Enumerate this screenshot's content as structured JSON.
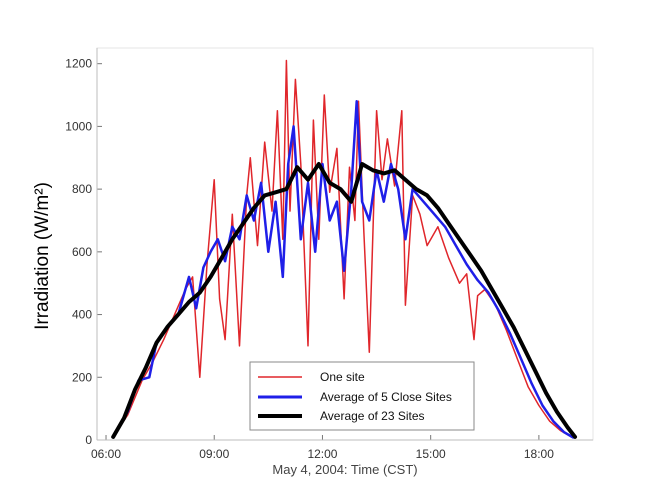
{
  "chart_data": {
    "type": "line",
    "xlabel": "May 4, 2004: Time (CST)",
    "ylabel": "Irradiation (W/m²)",
    "xlim": [
      5.75,
      19.5
    ],
    "ylim": [
      0,
      1250
    ],
    "x_ticks": [
      6,
      9,
      12,
      15,
      18
    ],
    "x_tick_labels": [
      "06:00",
      "09:00",
      "12:00",
      "15:00",
      "18:00"
    ],
    "y_ticks": [
      0,
      200,
      400,
      600,
      800,
      1000,
      1200
    ],
    "y_tick_labels": [
      "0",
      "200",
      "400",
      "600",
      "800",
      "1000",
      "1200"
    ],
    "legend_position": "bottom-center",
    "series": [
      {
        "name": "One site",
        "color": "#e0262b",
        "x": [
          6.2,
          6.6,
          7.0,
          7.3,
          7.6,
          7.9,
          8.2,
          8.4,
          8.6,
          8.8,
          9.0,
          9.15,
          9.3,
          9.5,
          9.7,
          9.9,
          10.0,
          10.2,
          10.4,
          10.6,
          10.75,
          10.9,
          11.0,
          11.1,
          11.25,
          11.4,
          11.6,
          11.75,
          11.9,
          12.05,
          12.2,
          12.4,
          12.6,
          12.75,
          12.9,
          13.0,
          13.15,
          13.3,
          13.5,
          13.65,
          13.8,
          14.0,
          14.2,
          14.3,
          14.5,
          14.7,
          14.9,
          15.2,
          15.5,
          15.8,
          16.0,
          16.2,
          16.3,
          16.5,
          16.8,
          17.1,
          17.4,
          17.7,
          18.0,
          18.3,
          18.6,
          18.9
        ],
        "y": [
          10,
          80,
          190,
          250,
          320,
          400,
          480,
          520,
          200,
          560,
          830,
          450,
          320,
          720,
          300,
          780,
          900,
          620,
          950,
          730,
          1050,
          640,
          1210,
          730,
          1150,
          880,
          300,
          1020,
          640,
          1100,
          790,
          930,
          450,
          870,
          700,
          1080,
          660,
          280,
          1050,
          830,
          960,
          810,
          1050,
          430,
          780,
          720,
          620,
          680,
          580,
          500,
          530,
          320,
          460,
          480,
          430,
          350,
          260,
          170,
          110,
          60,
          30,
          10
        ]
      },
      {
        "name": "Average of 5 Close Sites",
        "color": "#1f1fe8",
        "x": [
          6.2,
          6.6,
          6.9,
          7.2,
          7.4,
          7.7,
          8.0,
          8.3,
          8.5,
          8.7,
          8.9,
          9.1,
          9.3,
          9.5,
          9.7,
          9.9,
          10.1,
          10.3,
          10.5,
          10.7,
          10.9,
          11.05,
          11.2,
          11.4,
          11.6,
          11.8,
          12.0,
          12.2,
          12.4,
          12.6,
          12.8,
          12.95,
          13.1,
          13.3,
          13.5,
          13.7,
          13.9,
          14.1,
          14.3,
          14.5,
          14.8,
          15.1,
          15.4,
          15.7,
          16.0,
          16.3,
          16.6,
          16.9,
          17.2,
          17.5,
          17.8,
          18.1,
          18.4,
          18.7,
          18.95
        ],
        "y": [
          10,
          90,
          190,
          200,
          310,
          360,
          400,
          520,
          420,
          550,
          600,
          640,
          570,
          680,
          640,
          780,
          700,
          820,
          600,
          760,
          520,
          880,
          1000,
          640,
          820,
          600,
          880,
          700,
          760,
          540,
          800,
          1080,
          760,
          700,
          860,
          760,
          880,
          800,
          640,
          800,
          760,
          720,
          680,
          620,
          560,
          510,
          470,
          410,
          340,
          260,
          180,
          110,
          60,
          25,
          8
        ]
      },
      {
        "name": "Average of 23 Sites",
        "color": "#000000",
        "x": [
          6.2,
          6.5,
          6.8,
          7.1,
          7.4,
          7.7,
          8.0,
          8.3,
          8.6,
          8.9,
          9.2,
          9.5,
          9.8,
          10.1,
          10.4,
          10.7,
          11.0,
          11.3,
          11.6,
          11.9,
          12.2,
          12.5,
          12.8,
          13.1,
          13.4,
          13.7,
          14.0,
          14.3,
          14.6,
          14.9,
          15.2,
          15.5,
          15.8,
          16.1,
          16.4,
          16.7,
          17.0,
          17.3,
          17.6,
          17.9,
          18.2,
          18.5,
          18.8,
          19.0
        ],
        "y": [
          10,
          70,
          160,
          230,
          310,
          360,
          400,
          440,
          470,
          520,
          580,
          640,
          690,
          740,
          780,
          790,
          800,
          870,
          830,
          880,
          820,
          800,
          760,
          880,
          860,
          850,
          860,
          830,
          800,
          780,
          740,
          690,
          640,
          590,
          540,
          480,
          420,
          360,
          290,
          220,
          150,
          90,
          40,
          10
        ]
      }
    ]
  }
}
